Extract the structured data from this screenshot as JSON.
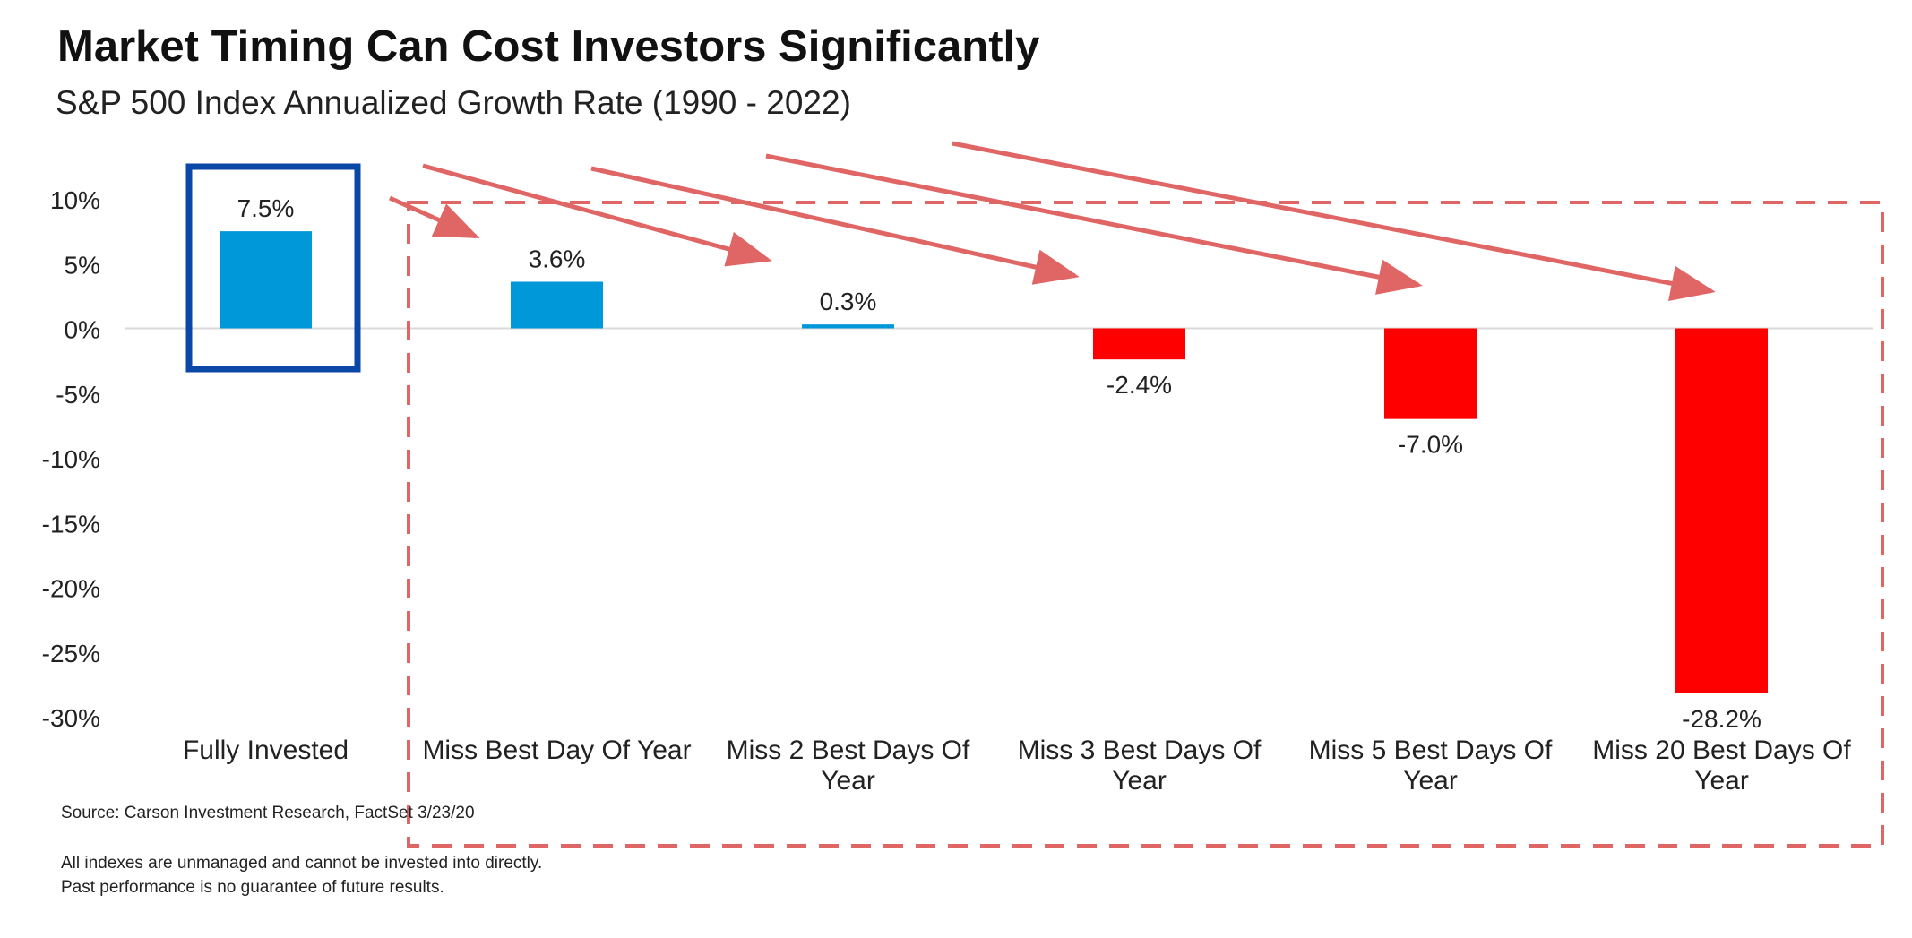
{
  "title": "Market Timing Can Cost Investors Significantly",
  "subtitle": "S&P 500 Index Annualized Growth Rate (1990 - 2022)",
  "chart_data": {
    "type": "bar",
    "categories": [
      [
        "Fully Invested"
      ],
      [
        "Miss Best Day Of Year"
      ],
      [
        "Miss 2 Best Days Of",
        "Year"
      ],
      [
        "Miss 3 Best Days Of",
        "Year"
      ],
      [
        "Miss 5 Best Days Of",
        "Year"
      ],
      [
        "Miss 20 Best Days Of",
        "Year"
      ]
    ],
    "values": [
      7.5,
      3.6,
      0.3,
      -2.4,
      -7.0,
      -28.2
    ],
    "data_labels": [
      "7.5%",
      "3.6%",
      "0.3%",
      "-2.4%",
      "-7.0%",
      "-28.2%"
    ],
    "ylim": [
      -30,
      10
    ],
    "y_ticks": [
      10,
      5,
      0,
      -5,
      -10,
      -15,
      -20,
      -25,
      -30
    ],
    "y_tick_labels": [
      "10%",
      "5%",
      "0%",
      "-5%",
      "-10%",
      "-15%",
      "-20%",
      "-25%",
      "-30%"
    ],
    "positive_color": "#0098d8",
    "negative_color": "#ff0000",
    "highlight_box_color": "#0b47a6",
    "annotation_color": "#e06666",
    "grid": false
  },
  "footnotes": {
    "source": "Source: Carson Investment Research, FactSet 3/23/20",
    "disclaimer_1": "All indexes are unmanaged and cannot be invested into directly.",
    "disclaimer_2": "Past performance is no guarantee of future results."
  }
}
